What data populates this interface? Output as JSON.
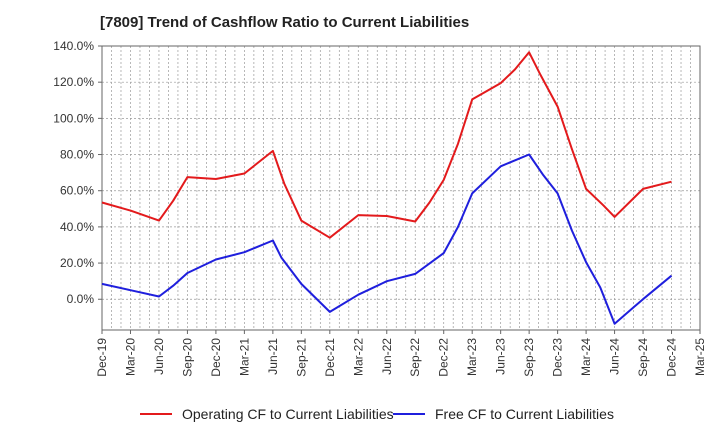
{
  "chart_data": {
    "type": "line",
    "title": "[7809]  Trend of Cashflow Ratio to Current Liabilities",
    "x_ticks": [
      "Dec-19",
      "Mar-20",
      "Jun-20",
      "Sep-20",
      "Dec-20",
      "Mar-21",
      "Jun-21",
      "Sep-21",
      "Dec-21",
      "Mar-22",
      "Jun-22",
      "Sep-22",
      "Dec-22",
      "Mar-23",
      "Jun-23",
      "Sep-23",
      "Dec-23",
      "Mar-24",
      "Jun-24",
      "Sep-24",
      "Dec-24",
      "Mar-25"
    ],
    "y_ticks": [
      "0.0%",
      "20.0%",
      "40.0%",
      "60.0%",
      "80.0%",
      "100.0%",
      "120.0%",
      "140.0%"
    ],
    "ylim": [
      -17,
      140
    ],
    "grid": true,
    "legend_position": "bottom",
    "series": [
      {
        "name": "Operating CF to Current Liabilities",
        "color": "#e31a1c",
        "points": [
          [
            0,
            53.5
          ],
          [
            1,
            49.0
          ],
          [
            2,
            43.5
          ],
          [
            2.5,
            54.5
          ],
          [
            3,
            67.5
          ],
          [
            4,
            66.5
          ],
          [
            5,
            69.5
          ],
          [
            6,
            82.0
          ],
          [
            6.4,
            64.0
          ],
          [
            7,
            43.5
          ],
          [
            8,
            34.0
          ],
          [
            9,
            46.5
          ],
          [
            10,
            46.0
          ],
          [
            11,
            43.0
          ],
          [
            11.5,
            53.5
          ],
          [
            12,
            66.0
          ],
          [
            12.5,
            86.0
          ],
          [
            13,
            110.5
          ],
          [
            14,
            119.5
          ],
          [
            14.5,
            127.0
          ],
          [
            15,
            136.5
          ],
          [
            15.4,
            124.0
          ],
          [
            16,
            106.5
          ],
          [
            16.5,
            83.0
          ],
          [
            17,
            61.0
          ],
          [
            17.6,
            52.0
          ],
          [
            18,
            45.5
          ],
          [
            19,
            61.0
          ],
          [
            20,
            65.0
          ]
        ]
      },
      {
        "name": "Free CF to Current Liabilities",
        "color": "#1f1fdd",
        "points": [
          [
            0,
            8.5
          ],
          [
            1,
            5.0
          ],
          [
            2,
            1.5
          ],
          [
            2.5,
            7.5
          ],
          [
            3,
            14.5
          ],
          [
            4,
            22.0
          ],
          [
            5,
            26.0
          ],
          [
            6,
            32.5
          ],
          [
            6.3,
            23.0
          ],
          [
            7,
            8.5
          ],
          [
            8,
            -7.0
          ],
          [
            9,
            2.5
          ],
          [
            10,
            10.0
          ],
          [
            11,
            14.0
          ],
          [
            12,
            25.5
          ],
          [
            12.5,
            40.0
          ],
          [
            13,
            58.5
          ],
          [
            14,
            73.5
          ],
          [
            15,
            80.0
          ],
          [
            15.5,
            68.5
          ],
          [
            16,
            58.5
          ],
          [
            16.5,
            38.0
          ],
          [
            17,
            20.5
          ],
          [
            17.5,
            6.5
          ],
          [
            18,
            -13.5
          ],
          [
            19,
            0.0
          ],
          [
            20,
            13.0
          ]
        ]
      }
    ]
  }
}
